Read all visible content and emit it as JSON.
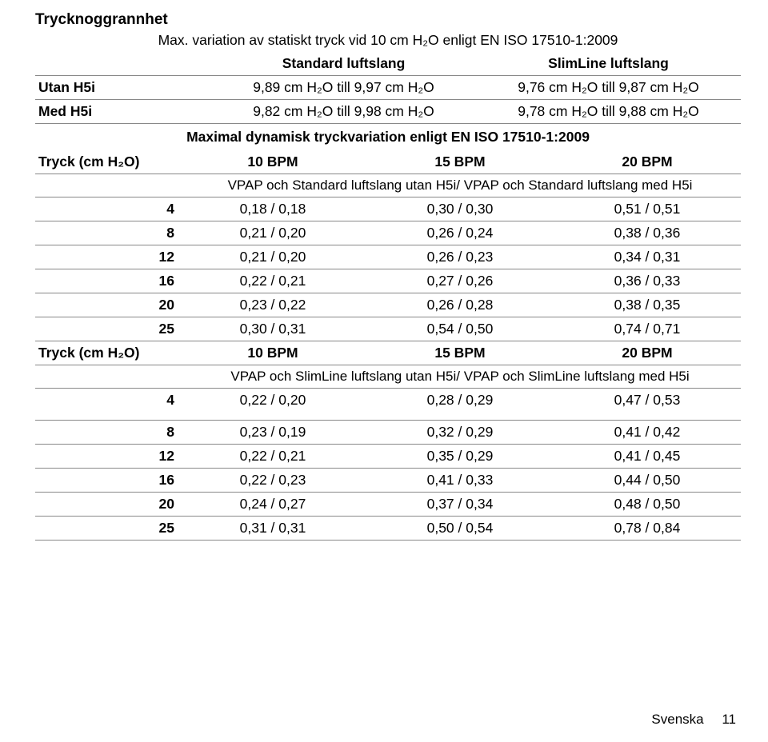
{
  "title": "Trycknoggrannhet",
  "max_variation_title": "Max. variation av statiskt tryck vid 10 cm H₂O enligt EN ISO 17510-1:2009",
  "col_header_standard": "Standard luftslang",
  "col_header_slimline": "SlimLine luftslang",
  "static_rows": [
    {
      "label": "Utan H5i",
      "c1": "9,89 cm H₂O till 9,97 cm H₂O",
      "c2": "9,76 cm H₂O till 9,87 cm H₂O"
    },
    {
      "label": "Med H5i",
      "c1": "9,82 cm H₂O till 9,98 cm H₂O",
      "c2": "9,78 cm H₂O till 9,88 cm H₂O"
    }
  ],
  "dyn_title": "Maximal dynamisk tryckvariation enligt EN ISO 17510-1:2009",
  "tryck_heading_label": "Tryck (cm H₂O)",
  "bpm_labels": [
    "10 BPM",
    "15 BPM",
    "20 BPM"
  ],
  "sub_heading_1": "VPAP och Standard luftslang utan H5i/ VPAP och Standard luftslang med H5i",
  "table1": [
    {
      "p": "4",
      "c1": "0,18 / 0,18",
      "c2": "0,30 / 0,30",
      "c3": "0,51 / 0,51"
    },
    {
      "p": "8",
      "c1": "0,21 / 0,20",
      "c2": "0,26 / 0,24",
      "c3": "0,38 / 0,36"
    },
    {
      "p": "12",
      "c1": "0,21 / 0,20",
      "c2": "0,26 / 0,23",
      "c3": "0,34 / 0,31"
    },
    {
      "p": "16",
      "c1": "0,22 / 0,21",
      "c2": "0,27 / 0,26",
      "c3": "0,36 / 0,33"
    },
    {
      "p": "20",
      "c1": "0,23 / 0,22",
      "c2": "0,26 / 0,28",
      "c3": "0,38 / 0,35"
    },
    {
      "p": "25",
      "c1": "0,30 / 0,31",
      "c2": "0,54 / 0,50",
      "c3": "0,74 / 0,71"
    }
  ],
  "sub_heading_2": "VPAP och SlimLine luftslang utan H5i/ VPAP och SlimLine luftslang med H5i",
  "table2": [
    {
      "p": "4",
      "c1": "0,22 / 0,20",
      "c2": "0,28 / 0,29",
      "c3": "0,47 / 0,53"
    },
    {
      "p": "8",
      "c1": "0,23 / 0,19",
      "c2": "0,32 / 0,29",
      "c3": "0,41 / 0,42"
    },
    {
      "p": "12",
      "c1": "0,22 / 0,21",
      "c2": "0,35 / 0,29",
      "c3": "0,41 / 0,45"
    },
    {
      "p": "16",
      "c1": "0,22 / 0,23",
      "c2": "0,41 / 0,33",
      "c3": "0,44 / 0,50"
    },
    {
      "p": "20",
      "c1": "0,24 / 0,27",
      "c2": "0,37 / 0,34",
      "c3": "0,48 / 0,50"
    },
    {
      "p": "25",
      "c1": "0,31 / 0,31",
      "c2": "0,50 / 0,54",
      "c3": "0,78 / 0,84"
    }
  ],
  "footer_lang": "Svenska",
  "footer_page": "11"
}
